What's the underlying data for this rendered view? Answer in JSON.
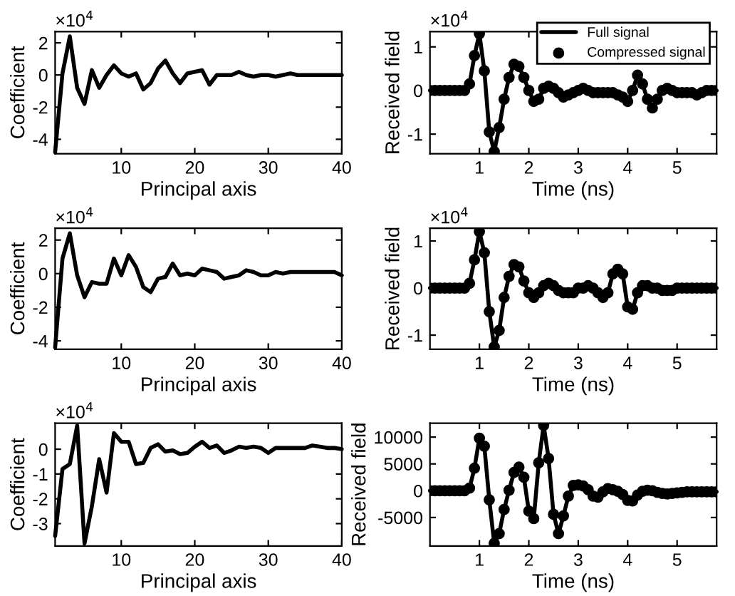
{
  "chart_data": [
    {
      "type": "line",
      "xlabel": "Principal axis",
      "ylabel": "Coefficient",
      "annotations": [
        "×10$^{4}$"
      ],
      "xlim": [
        1,
        40
      ],
      "xticks": [
        10,
        20,
        30,
        40
      ],
      "ylim": [
        -4.9,
        2.7
      ],
      "yticks": [
        -4,
        -2,
        0,
        2
      ],
      "grid": false,
      "x": [
        1,
        2,
        3,
        4,
        5,
        6,
        7,
        8,
        9,
        10,
        11,
        12,
        13,
        14,
        15,
        16,
        17,
        18,
        19,
        20,
        21,
        22,
        23,
        24,
        25,
        26,
        27,
        28,
        29,
        30,
        31,
        32,
        33,
        34,
        35,
        36,
        37,
        38,
        39,
        40
      ],
      "series": [
        {
          "color": "#000000",
          "values": [
            -4.8,
            0.1,
            2.4,
            -0.8,
            -1.8,
            0.3,
            -0.8,
            0.0,
            0.6,
            0.1,
            -0.1,
            0.1,
            -0.9,
            -0.5,
            0.4,
            0.9,
            0.1,
            -0.5,
            0.1,
            0.2,
            0.3,
            -0.6,
            0.0,
            0.0,
            0.0,
            0.2,
            0.0,
            -0.1,
            0.0,
            0.0,
            -0.1,
            0.0,
            0.1,
            0.0,
            0.0,
            0.0,
            0.0,
            0.0,
            0.0,
            0.0
          ]
        }
      ]
    },
    {
      "type": "line",
      "xlabel": "Time (ns)",
      "ylabel": "Received field",
      "annotations": [
        "×10$^{4}$"
      ],
      "xlim": [
        0,
        5.8
      ],
      "xticks": [
        1,
        2,
        3,
        4,
        5
      ],
      "ylim": [
        -1.45,
        1.35
      ],
      "yticks": [
        -1,
        0,
        1
      ],
      "grid": false,
      "legend": "top right",
      "x": [
        0,
        0.1,
        0.2,
        0.3,
        0.4,
        0.5,
        0.6,
        0.7,
        0.8,
        0.9,
        1.0,
        1.1,
        1.2,
        1.3,
        1.4,
        1.5,
        1.6,
        1.7,
        1.8,
        1.9,
        2.0,
        2.1,
        2.2,
        2.3,
        2.4,
        2.5,
        2.6,
        2.7,
        2.8,
        2.9,
        3.0,
        3.1,
        3.2,
        3.3,
        3.4,
        3.5,
        3.6,
        3.7,
        3.8,
        3.9,
        4.0,
        4.1,
        4.2,
        4.3,
        4.4,
        4.5,
        4.6,
        4.7,
        4.8,
        4.9,
        5.0,
        5.1,
        5.2,
        5.3,
        5.4,
        5.5,
        5.6,
        5.7,
        5.8
      ],
      "series": [
        {
          "name": "Full signal",
          "color": "#000000",
          "values": [
            0,
            0,
            0,
            0,
            0,
            0,
            0,
            0,
            0.15,
            0.8,
            1.3,
            0.45,
            -0.95,
            -1.4,
            -0.85,
            -0.2,
            0.3,
            0.6,
            0.55,
            0.3,
            0.0,
            -0.25,
            -0.2,
            0.05,
            0.1,
            0.05,
            -0.05,
            -0.15,
            -0.1,
            -0.05,
            0,
            0.05,
            0,
            -0.05,
            -0.05,
            -0.05,
            -0.05,
            -0.05,
            -0.1,
            -0.15,
            -0.25,
            0.0,
            0.35,
            0.15,
            -0.2,
            -0.4,
            -0.2,
            0,
            0.05,
            0.0,
            -0.05,
            -0.05,
            -0.05,
            -0.05,
            -0.1,
            -0.05,
            0.0,
            0.0,
            0.0
          ]
        },
        {
          "name": "Compressed signal",
          "type": "scatter",
          "color": "#000000",
          "values": [
            0,
            0,
            0,
            0,
            0,
            0,
            0,
            0,
            0.15,
            0.8,
            1.3,
            0.45,
            -0.95,
            -1.4,
            -0.85,
            -0.2,
            0.3,
            0.6,
            0.55,
            0.3,
            0.0,
            -0.25,
            -0.2,
            0.05,
            0.1,
            0.05,
            -0.05,
            -0.15,
            -0.1,
            -0.05,
            0,
            0.05,
            0,
            -0.05,
            -0.05,
            -0.05,
            -0.05,
            -0.05,
            -0.1,
            -0.15,
            -0.25,
            0.0,
            0.35,
            0.15,
            -0.2,
            -0.4,
            -0.2,
            0,
            0.05,
            0.0,
            -0.05,
            -0.05,
            -0.05,
            -0.05,
            -0.1,
            -0.05,
            0.0,
            0.0,
            0.0
          ]
        }
      ]
    },
    {
      "type": "line",
      "xlabel": "Principal axis",
      "ylabel": "Coefficient",
      "annotations": [
        "×10$^{4}$"
      ],
      "xlim": [
        1,
        40
      ],
      "xticks": [
        10,
        20,
        30,
        40
      ],
      "ylim": [
        -4.5,
        2.7
      ],
      "yticks": [
        -4,
        -2,
        0,
        2
      ],
      "grid": false,
      "x": [
        1,
        2,
        3,
        4,
        5,
        6,
        7,
        8,
        9,
        10,
        11,
        12,
        13,
        14,
        15,
        16,
        17,
        18,
        19,
        20,
        21,
        22,
        23,
        24,
        25,
        26,
        27,
        28,
        29,
        30,
        31,
        32,
        33,
        34,
        35,
        36,
        37,
        38,
        39,
        40
      ],
      "series": [
        {
          "color": "#000000",
          "values": [
            -4.4,
            0.9,
            2.4,
            -0.1,
            -1.4,
            -0.5,
            -0.6,
            -0.6,
            0.9,
            -0.1,
            1.1,
            0.4,
            -0.8,
            -1.1,
            -0.3,
            -0.2,
            0.6,
            -0.1,
            0.0,
            -0.1,
            0.3,
            0.2,
            0.1,
            -0.3,
            -0.2,
            -0.1,
            0.2,
            0.1,
            -0.1,
            -0.1,
            0.1,
            0.0,
            0.1,
            0.1,
            0.1,
            0.1,
            0.1,
            0.1,
            0.1,
            -0.1
          ]
        }
      ]
    },
    {
      "type": "line",
      "xlabel": "Time (ns)",
      "ylabel": "Received field",
      "annotations": [
        "×10$^{4}$"
      ],
      "xlim": [
        0,
        5.8
      ],
      "xticks": [
        1,
        2,
        3,
        4,
        5
      ],
      "ylim": [
        -1.3,
        1.27
      ],
      "yticks": [
        -1,
        0,
        1
      ],
      "grid": false,
      "x": [
        0,
        0.1,
        0.2,
        0.3,
        0.4,
        0.5,
        0.6,
        0.7,
        0.8,
        0.9,
        1.0,
        1.1,
        1.2,
        1.3,
        1.4,
        1.5,
        1.6,
        1.7,
        1.8,
        1.9,
        2.0,
        2.1,
        2.2,
        2.3,
        2.4,
        2.5,
        2.6,
        2.7,
        2.8,
        2.9,
        3.0,
        3.1,
        3.2,
        3.3,
        3.4,
        3.5,
        3.6,
        3.7,
        3.8,
        3.9,
        4.0,
        4.1,
        4.2,
        4.3,
        4.4,
        4.5,
        4.6,
        4.7,
        4.8,
        4.9,
        5.0,
        5.1,
        5.2,
        5.3,
        5.4,
        5.5,
        5.6,
        5.7,
        5.8
      ],
      "series": [
        {
          "color": "#000000",
          "values": [
            0,
            0,
            0,
            0,
            0,
            0,
            0,
            0,
            0.1,
            0.6,
            1.2,
            0.75,
            -0.5,
            -1.25,
            -0.9,
            -0.2,
            0.25,
            0.5,
            0.45,
            0.15,
            -0.1,
            -0.2,
            -0.1,
            0.05,
            0.1,
            0.05,
            -0.05,
            -0.1,
            -0.1,
            -0.1,
            0,
            0,
            0.05,
            0.0,
            -0.1,
            -0.2,
            -0.1,
            0.3,
            0.4,
            0.3,
            -0.4,
            -0.45,
            -0.1,
            0.05,
            0.05,
            0.0,
            0,
            -0.05,
            -0.05,
            -0.05,
            0.0,
            0,
            0.0,
            0,
            0.0,
            0.0,
            0.0,
            0.0,
            0.0
          ]
        },
        {
          "type": "scatter",
          "color": "#000000",
          "values": [
            0,
            0,
            0,
            0,
            0,
            0,
            0,
            0,
            0.1,
            0.6,
            1.2,
            0.75,
            -0.5,
            -1.25,
            -0.9,
            -0.2,
            0.25,
            0.5,
            0.45,
            0.15,
            -0.1,
            -0.2,
            -0.1,
            0.05,
            0.1,
            0.05,
            -0.05,
            -0.1,
            -0.1,
            -0.1,
            0,
            0,
            0.05,
            0.0,
            -0.1,
            -0.2,
            -0.1,
            0.3,
            0.4,
            0.3,
            -0.4,
            -0.45,
            -0.1,
            0.05,
            0.05,
            0.0,
            0,
            -0.05,
            -0.05,
            -0.05,
            0.0,
            0,
            0.0,
            0,
            0.0,
            0.0,
            0.0,
            0.0,
            0.0
          ]
        }
      ]
    },
    {
      "type": "line",
      "xlabel": "Principal axis",
      "ylabel": "Coefficient",
      "annotations": [
        "×10$^{4}$"
      ],
      "xlim": [
        1,
        40
      ],
      "xticks": [
        10,
        20,
        30,
        40
      ],
      "ylim": [
        -3.9,
        1.05
      ],
      "yticks": [
        -3,
        -2,
        -1,
        0
      ],
      "grid": false,
      "x": [
        1,
        2,
        3,
        4,
        5,
        6,
        7,
        8,
        9,
        10,
        11,
        12,
        13,
        14,
        15,
        16,
        17,
        18,
        19,
        20,
        21,
        22,
        23,
        24,
        25,
        26,
        27,
        28,
        29,
        30,
        31,
        32,
        33,
        34,
        35,
        36,
        37,
        38,
        39,
        40
      ],
      "series": [
        {
          "color": "#000000",
          "values": [
            -3.5,
            -0.8,
            -0.6,
            0.95,
            -3.8,
            -2.3,
            -0.4,
            -1.75,
            0.65,
            0.3,
            0.3,
            -0.6,
            -0.55,
            0.05,
            0.2,
            -0.1,
            -0.05,
            -0.2,
            -0.15,
            0.1,
            0.3,
            0.05,
            0.15,
            -0.15,
            -0.05,
            0.1,
            0.05,
            0.1,
            0.05,
            -0.15,
            0.05,
            0.05,
            0.05,
            0.05,
            0.05,
            0.15,
            0.1,
            0.05,
            0.05,
            0.0
          ]
        }
      ]
    },
    {
      "type": "line",
      "xlabel": "Time (ns)",
      "ylabel": "Received field",
      "xlim": [
        0,
        5.8
      ],
      "xticks": [
        1,
        2,
        3,
        4,
        5
      ],
      "ylim": [
        -10300,
        12600
      ],
      "yticks": [
        -5000,
        0,
        5000,
        10000
      ],
      "grid": false,
      "x": [
        0,
        0.1,
        0.2,
        0.3,
        0.4,
        0.5,
        0.6,
        0.7,
        0.8,
        0.9,
        1.0,
        1.1,
        1.2,
        1.3,
        1.4,
        1.5,
        1.6,
        1.7,
        1.8,
        1.9,
        2.0,
        2.1,
        2.2,
        2.3,
        2.4,
        2.5,
        2.6,
        2.7,
        2.8,
        2.9,
        3.0,
        3.1,
        3.2,
        3.3,
        3.4,
        3.5,
        3.6,
        3.7,
        3.8,
        3.9,
        4.0,
        4.1,
        4.2,
        4.3,
        4.4,
        4.5,
        4.6,
        4.7,
        4.8,
        4.9,
        5.0,
        5.1,
        5.2,
        5.3,
        5.4,
        5.5,
        5.6,
        5.7,
        5.8
      ],
      "series": [
        {
          "color": "#000000",
          "values": [
            0,
            0,
            0,
            0,
            0,
            0,
            0,
            0,
            500,
            4200,
            9800,
            8300,
            -1700,
            -9800,
            -8000,
            -3500,
            100,
            3400,
            4400,
            2500,
            -3800,
            -5200,
            5200,
            12200,
            6000,
            -4400,
            -8000,
            -4700,
            -1000,
            1000,
            1100,
            900,
            200,
            -1000,
            -1200,
            -200,
            400,
            200,
            -100,
            -700,
            -1800,
            -1900,
            -800,
            -100,
            100,
            0,
            -300,
            -500,
            -600,
            -500,
            -400,
            -300,
            -200,
            -200,
            -200,
            -200,
            -200,
            -200,
            -200
          ]
        },
        {
          "type": "scatter",
          "color": "#000000",
          "values": [
            0,
            0,
            0,
            0,
            0,
            0,
            0,
            0,
            500,
            4200,
            9800,
            8300,
            -1700,
            -9800,
            -8000,
            -3500,
            100,
            3400,
            4400,
            2500,
            -3800,
            -5200,
            5200,
            12200,
            6000,
            -4400,
            -8000,
            -4700,
            -1000,
            1000,
            1100,
            900,
            200,
            -1000,
            -1200,
            -200,
            400,
            200,
            -100,
            -700,
            -1800,
            -1900,
            -800,
            -100,
            100,
            0,
            -300,
            -500,
            -600,
            -500,
            -400,
            -300,
            -200,
            -200,
            -200,
            -200,
            -200,
            -200,
            -200
          ]
        }
      ]
    }
  ]
}
